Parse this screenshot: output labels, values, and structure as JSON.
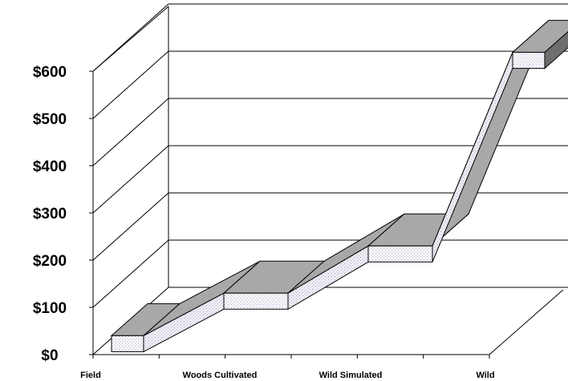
{
  "chart_data": {
    "type": "area",
    "title": "",
    "xlabel": "",
    "ylabel": "",
    "categories": [
      "Field",
      "Woods Cultivated",
      "Wild Simulated",
      "Wild"
    ],
    "series": [
      {
        "values": [
          40,
          130,
          230,
          640
        ]
      }
    ],
    "ylim": [
      0,
      600
    ],
    "yticks": [
      "$0",
      "$100",
      "$200",
      "$300",
      "$400",
      "$500",
      "$600"
    ],
    "grid": true,
    "legend": "none",
    "style": "3d-ribbon",
    "colors": {
      "front_face": "#f3f3fb",
      "top_face": "#a8a8a8",
      "grid": "#000000",
      "background": "#ffffff"
    }
  }
}
